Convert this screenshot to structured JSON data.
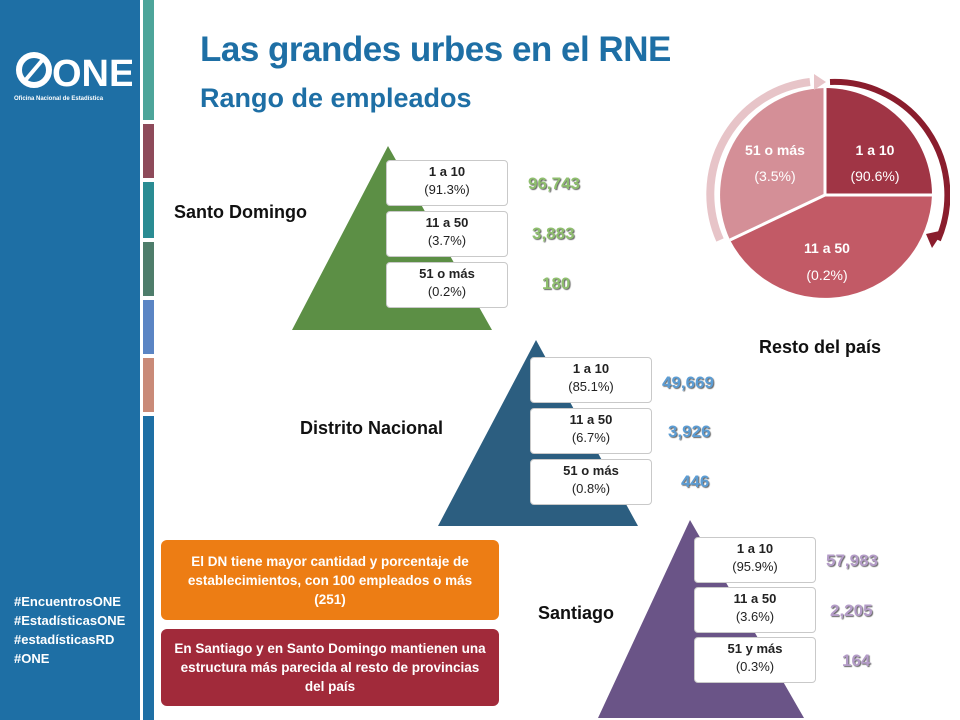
{
  "brand": {
    "logo_text": "ONE",
    "logo_subtext": "Oficina Nacional de Estadística"
  },
  "hashtags": [
    "#EncuentrosONE",
    "#EstadísticasONE",
    "#estadísticasRD",
    "#ONE"
  ],
  "title": "Las grandes urbes en el RNE",
  "subtitle": "Rango de empleados",
  "colors": {
    "sidebar": "#1e6fa5",
    "santo_domingo": "#5c8f45",
    "distrito_nacional": "#2c5e80",
    "santiago": "#6a5487",
    "resto": "#a03545",
    "orange_note": "#ed7d14",
    "red_note": "#a12a3a"
  },
  "santo_domingo": {
    "label": "Santo Domingo",
    "tiers": [
      {
        "range": "1 a 10",
        "pct": "(91.3%)",
        "value": "96,743"
      },
      {
        "range": "11 a 50",
        "pct": "(3.7%)",
        "value": "3,883"
      },
      {
        "range": "51 o más",
        "pct": "(0.2%)",
        "value": "180"
      }
    ]
  },
  "distrito_nacional": {
    "label": "Distrito Nacional",
    "tiers": [
      {
        "range": "1 a 10",
        "pct": "(85.1%)",
        "value": "49,669"
      },
      {
        "range": "11 a 50",
        "pct": "(6.7%)",
        "value": "3,926"
      },
      {
        "range": "51 o más",
        "pct": "(0.8%)",
        "value": "446"
      }
    ]
  },
  "santiago": {
    "label": "Santiago",
    "tiers": [
      {
        "range": "1 a 10",
        "pct": "(95.9%)",
        "value": "57,983"
      },
      {
        "range": "11 a 50",
        "pct": "(3.6%)",
        "value": "2,205"
      },
      {
        "range": "51 y más",
        "pct": "(0.3%)",
        "value": "164"
      }
    ]
  },
  "resto": {
    "label": "Resto del país",
    "segments": [
      {
        "range": "1 a 10",
        "pct": "(90.6%)"
      },
      {
        "range": "11 a 50",
        "pct": "(0.2%)"
      },
      {
        "range": "51 o más",
        "pct": "(3.5%)"
      }
    ]
  },
  "notes": {
    "orange": "El DN tiene mayor cantidad y porcentaje de establecimientos, con 100 empleados o más (251)",
    "red": "En Santiago y en Santo Domingo mantienen una estructura más parecida al resto de provincias del país"
  }
}
